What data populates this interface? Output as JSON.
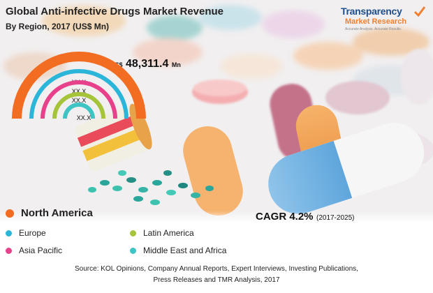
{
  "chart_data": {
    "type": "radial-bar",
    "title": "Global Anti-infective Drugs Market Revenue",
    "subtitle": "By Region, 2017 (US$ Mn)",
    "total": {
      "currency": "US$",
      "value": "48,311.4",
      "unit": "Mn"
    },
    "series": [
      {
        "name": "North America",
        "value_label": "",
        "color": "#f26d21"
      },
      {
        "name": "Europe",
        "value_label": "XX.X",
        "color": "#2bb5d9"
      },
      {
        "name": "Asia Pacific",
        "value_label": "XX.X",
        "color": "#e8418b"
      },
      {
        "name": "Latin America",
        "value_label": "XX.X",
        "color": "#a6c439"
      },
      {
        "name": "Middle East and Africa",
        "value_label": "XX.X",
        "color": "#3fc4c4"
      }
    ],
    "cagr": {
      "label": "CAGR 4.2%",
      "period": "(2017-2025)"
    }
  },
  "logo": {
    "line1": "Transparency",
    "line2": "Market Research",
    "tagline": "Accurate Analysis. Accurate Results."
  },
  "source": {
    "line1": "Source: KOL Opinions, Company Annual Reports, Expert Interviews, Investing Publications,",
    "line2": "Press Releases and TMR Analysis, 2017"
  }
}
